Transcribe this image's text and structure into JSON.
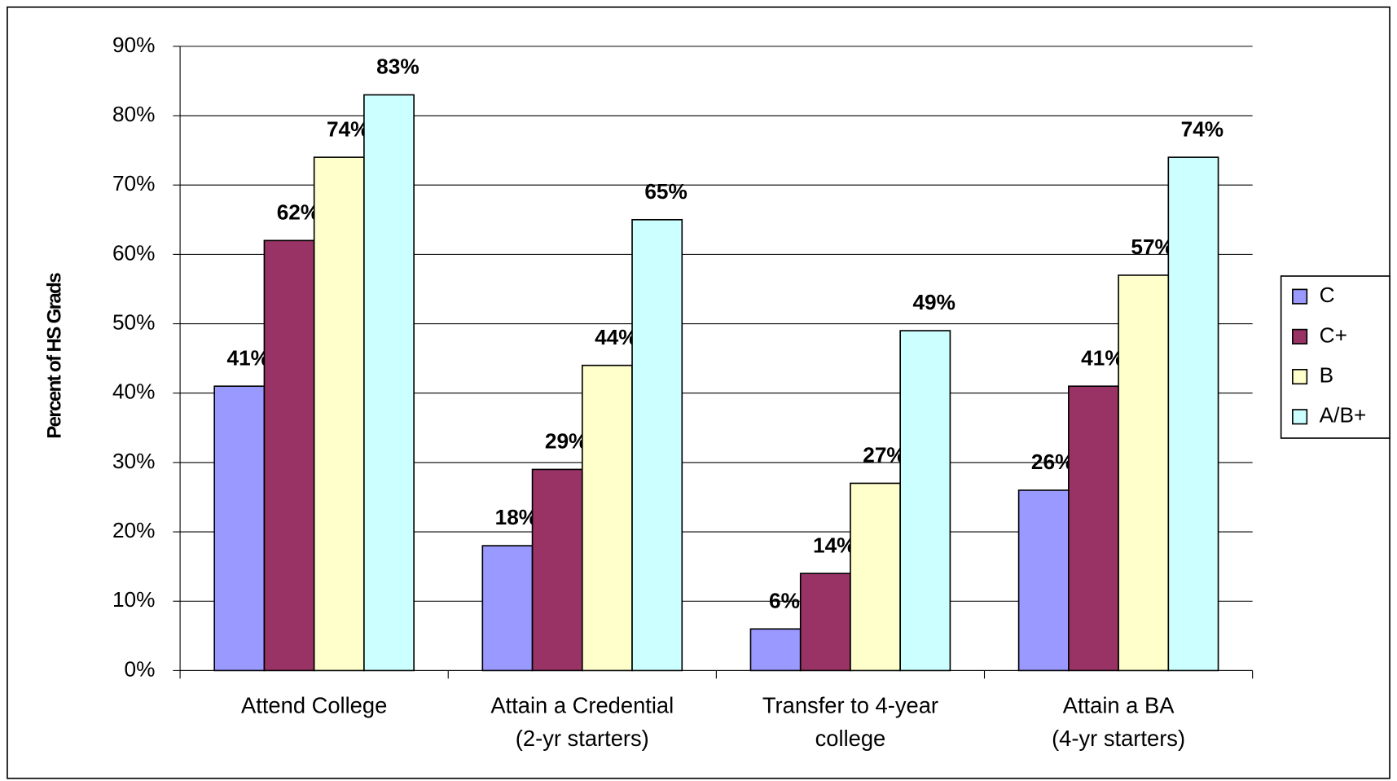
{
  "chart_data": {
    "type": "bar",
    "y_label": "Percent of HS Grads",
    "categories": [
      [
        "Attend College"
      ],
      [
        "Attain a Credential",
        "(2-yr starters)"
      ],
      [
        "Transfer to 4-year",
        "college"
      ],
      [
        "Attain a BA",
        "(4-yr starters)"
      ]
    ],
    "series": [
      {
        "name": "C",
        "color": "#9999ff",
        "values": [
          41,
          18,
          6,
          26
        ],
        "value_labels": [
          "41%",
          "18%",
          "6%",
          "26%"
        ]
      },
      {
        "name": "C+",
        "color": "#993366",
        "values": [
          62,
          29,
          14,
          41
        ],
        "value_labels": [
          "62%",
          "29%",
          "14%",
          "41%"
        ]
      },
      {
        "name": "B",
        "color": "#ffffcc",
        "values": [
          74,
          44,
          27,
          57
        ],
        "value_labels": [
          "74%",
          "44%",
          "27%",
          "57%"
        ]
      },
      {
        "name": "A/B+",
        "color": "#ccffff",
        "values": [
          83,
          65,
          49,
          74
        ],
        "value_labels": [
          "83%",
          "65%",
          "49%",
          "74%"
        ]
      }
    ],
    "ylim": [
      0,
      90
    ],
    "yticks": [
      {
        "value": 0,
        "label": "0%"
      },
      {
        "value": 10,
        "label": "10%"
      },
      {
        "value": 20,
        "label": "20%"
      },
      {
        "value": 30,
        "label": "30%"
      },
      {
        "value": 40,
        "label": "40%"
      },
      {
        "value": 50,
        "label": "50%"
      },
      {
        "value": 60,
        "label": "60%"
      },
      {
        "value": 70,
        "label": "70%"
      },
      {
        "value": 80,
        "label": "80%"
      },
      {
        "value": 90,
        "label": "90%"
      }
    ],
    "grid": true,
    "legend": "right"
  }
}
